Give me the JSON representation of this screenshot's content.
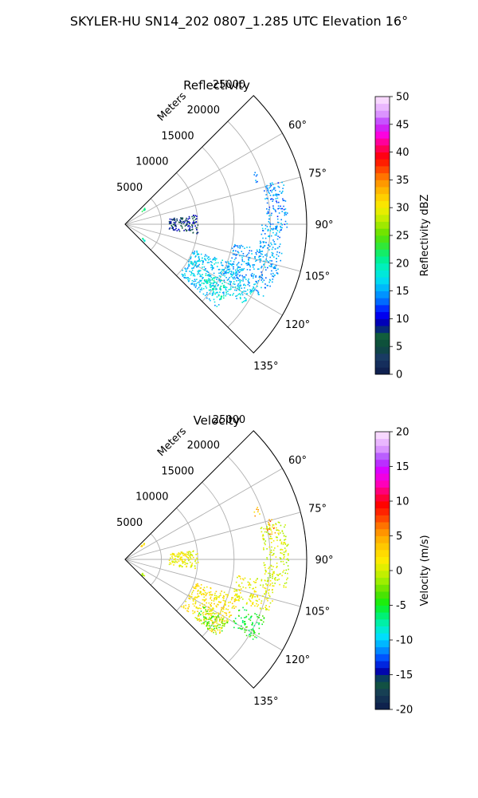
{
  "figure": {
    "title": "SKYLER-HU  SN14_202  0807_1.285 UTC Elevation 16°"
  },
  "chart_data": [
    {
      "type": "scatter",
      "subtype": "polar-ppi",
      "title": "Reflectivity",
      "r_axis_label": "Meters",
      "r_ticks": [
        5000,
        10000,
        15000,
        20000,
        25000
      ],
      "r_tick_labels": [
        "5000",
        "10000",
        "15000",
        "20000",
        "25000"
      ],
      "r_lim": [
        0,
        25000
      ],
      "theta_ticks_deg": [
        60,
        75,
        90,
        105,
        120,
        135
      ],
      "theta_tick_labels": [
        "60°",
        "75°",
        "90°",
        "105°",
        "120°",
        "135°"
      ],
      "theta_lim_deg": [
        45,
        135
      ],
      "grid": true,
      "colorbar": {
        "label": "Reflectivity dBZ",
        "range": [
          0,
          50
        ],
        "ticks": [
          0,
          5,
          10,
          15,
          20,
          25,
          30,
          35,
          40,
          45,
          50
        ]
      },
      "regions": [
        {
          "theta_deg": [
            110,
            132
          ],
          "r": [
            10000,
            17000
          ],
          "value": 16
        },
        {
          "theta_deg": [
            100,
            118
          ],
          "r": [
            15000,
            22000
          ],
          "value": 15
        },
        {
          "theta_deg": [
            90,
            102
          ],
          "r": [
            18500,
            21500
          ],
          "value": 15
        },
        {
          "theta_deg": [
            74,
            92
          ],
          "r": [
            19500,
            22500
          ],
          "value": 14
        },
        {
          "theta_deg": [
            115,
            124
          ],
          "r": [
            17000,
            20000
          ],
          "value": 17
        },
        {
          "theta_deg": [
            120,
            128
          ],
          "r": [
            13000,
            17000
          ],
          "value": 19
        },
        {
          "theta_deg": [
            82,
            97
          ],
          "r": [
            6000,
            10000
          ],
          "value": 8
        },
        {
          "theta_deg": [
            48,
            52
          ],
          "r": [
            2800,
            3600
          ],
          "value": 20
        },
        {
          "theta_deg": [
            128,
            132
          ],
          "r": [
            2800,
            3600
          ],
          "value": 20
        },
        {
          "theta_deg": [
            68,
            72
          ],
          "r": [
            18800,
            19600
          ],
          "value": 14
        }
      ]
    },
    {
      "type": "scatter",
      "subtype": "polar-ppi",
      "title": "Velocity",
      "r_axis_label": "Meters",
      "r_ticks": [
        5000,
        10000,
        15000,
        20000,
        25000
      ],
      "r_tick_labels": [
        "5000",
        "10000",
        "15000",
        "20000",
        "25000"
      ],
      "r_lim": [
        0,
        25000
      ],
      "theta_ticks_deg": [
        60,
        75,
        90,
        105,
        120,
        135
      ],
      "theta_tick_labels": [
        "60°",
        "75°",
        "90°",
        "105°",
        "120°",
        "135°"
      ],
      "theta_lim_deg": [
        45,
        135
      ],
      "grid": true,
      "colorbar": {
        "label": "Velocity (m/s)",
        "range": [
          -20,
          20
        ],
        "ticks": [
          -20,
          -15,
          -10,
          -5,
          0,
          5,
          10,
          15,
          20
        ]
      },
      "regions": [
        {
          "theta_deg": [
            108,
            130
          ],
          "r": [
            10000,
            16500
          ],
          "value": 2
        },
        {
          "theta_deg": [
            98,
            110
          ],
          "r": [
            15500,
            21000
          ],
          "value": 1
        },
        {
          "theta_deg": [
            76,
            100
          ],
          "r": [
            19000,
            22500
          ],
          "value": 0
        },
        {
          "theta_deg": [
            112,
            122
          ],
          "r": [
            17000,
            21000
          ],
          "value": -5
        },
        {
          "theta_deg": [
            121,
            130
          ],
          "r": [
            12500,
            16500
          ],
          "value": -3
        },
        {
          "theta_deg": [
            74,
            80
          ],
          "r": [
            19800,
            21000
          ],
          "value": 6
        },
        {
          "theta_deg": [
            82,
            97
          ],
          "r": [
            6000,
            10000
          ],
          "value": 1
        },
        {
          "theta_deg": [
            48,
            52
          ],
          "r": [
            2800,
            3600
          ],
          "value": 3
        },
        {
          "theta_deg": [
            128,
            132
          ],
          "r": [
            2800,
            3600
          ],
          "value": -2
        },
        {
          "theta_deg": [
            68,
            72
          ],
          "r": [
            18800,
            19600
          ],
          "value": 4
        }
      ]
    }
  ]
}
